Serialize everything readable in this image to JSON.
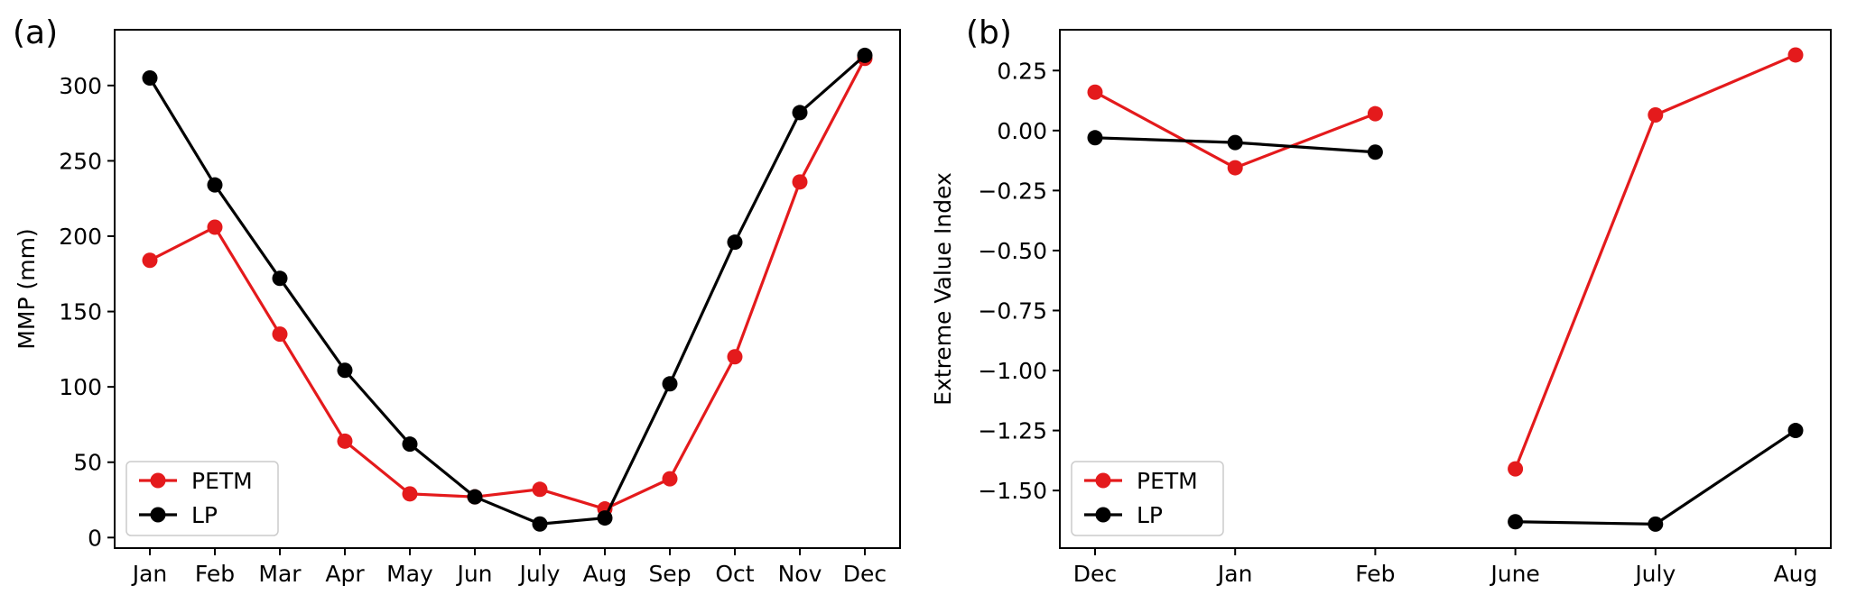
{
  "chart_data": [
    {
      "type": "line",
      "panel_label": "(a)",
      "title": "",
      "xlabel": "",
      "ylabel": "MMP (mm)",
      "categories": [
        "Jan",
        "Feb",
        "Mar",
        "Apr",
        "May",
        "Jun",
        "July",
        "Aug",
        "Sep",
        "Oct",
        "Nov",
        "Dec"
      ],
      "ylim": [
        -7,
        337
      ],
      "yticks": [
        0,
        50,
        100,
        150,
        200,
        250,
        300
      ],
      "ytick_labels": [
        "0",
        "50",
        "100",
        "150",
        "200",
        "250",
        "300"
      ],
      "legend_position": "lower-left",
      "series": [
        {
          "name": "PETM",
          "color": "#e41a1c",
          "values": [
            184,
            206,
            135,
            64,
            29,
            27,
            32,
            19,
            39,
            120,
            236,
            318
          ]
        },
        {
          "name": "LP",
          "color": "#000000",
          "values": [
            305,
            234,
            172,
            111,
            62,
            27,
            9,
            13,
            102,
            196,
            282,
            320
          ]
        }
      ]
    },
    {
      "type": "line",
      "panel_label": "(b)",
      "title": "",
      "xlabel": "",
      "ylabel": "Extreme Value Index",
      "categories": [
        "Dec",
        "Jan",
        "Feb",
        "June",
        "July",
        "Aug"
      ],
      "ylim": [
        -1.74,
        0.42
      ],
      "yticks": [
        0.25,
        0.0,
        -0.25,
        -0.5,
        -0.75,
        -1.0,
        -1.25,
        -1.5
      ],
      "ytick_labels": [
        "0.25",
        "0.00",
        "−0.25",
        "−0.50",
        "−0.75",
        "−1.00",
        "−1.25",
        "−1.50"
      ],
      "legend_position": "lower-left",
      "segments": [
        [
          0,
          1,
          2
        ],
        [
          3,
          4,
          5
        ]
      ],
      "series": [
        {
          "name": "PETM",
          "color": "#e41a1c",
          "values": [
            0.16,
            -0.155,
            0.07,
            -1.41,
            0.065,
            0.315
          ]
        },
        {
          "name": "LP",
          "color": "#000000",
          "values": [
            -0.03,
            -0.05,
            -0.09,
            -1.63,
            -1.64,
            -1.25
          ]
        }
      ]
    }
  ]
}
